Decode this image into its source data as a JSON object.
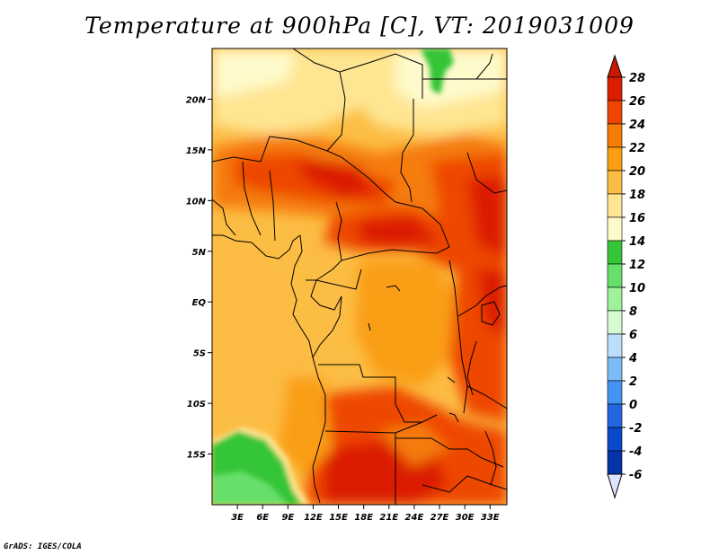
{
  "title": "Temperature at 900hPa [C], VT: 2019031009",
  "credit": "GrADS: IGES/COLA",
  "map": {
    "lat_labels": [
      "20N",
      "15N",
      "10N",
      "5N",
      "EQ",
      "5S",
      "10S",
      "15S"
    ],
    "lon_labels": [
      "3E",
      "6E",
      "9E",
      "12E",
      "15E",
      "18E",
      "21E",
      "24E",
      "27E",
      "30E",
      "33E"
    ],
    "lat_values": [
      20,
      15,
      10,
      5,
      0,
      -5,
      -10,
      -15
    ],
    "lon_values": [
      3,
      6,
      9,
      12,
      15,
      18,
      21,
      24,
      27,
      30,
      33
    ],
    "lon_range": [
      0,
      35
    ],
    "lat_range": [
      -20,
      25
    ]
  },
  "colorbar": {
    "labels": [
      "28",
      "26",
      "24",
      "22",
      "20",
      "18",
      "16",
      "14",
      "12",
      "10",
      "8",
      "6",
      "4",
      "2",
      "0",
      "-2",
      "-4",
      "-6"
    ],
    "colors": [
      "#dc1e00",
      "#ee4600",
      "#f57c07",
      "#fa9e12",
      "#fcbd44",
      "#fee591",
      "#fffacb",
      "#36c539",
      "#66e06a",
      "#9ff19a",
      "#d6fbd3",
      "#bcdefa",
      "#7cbcf6",
      "#4493f0",
      "#2466e0",
      "#0a48cc",
      "#0434a8",
      "#000070"
    ],
    "top_arrow_color": "#c81a00",
    "bottom_arrow_color": "#dce4ff"
  }
}
